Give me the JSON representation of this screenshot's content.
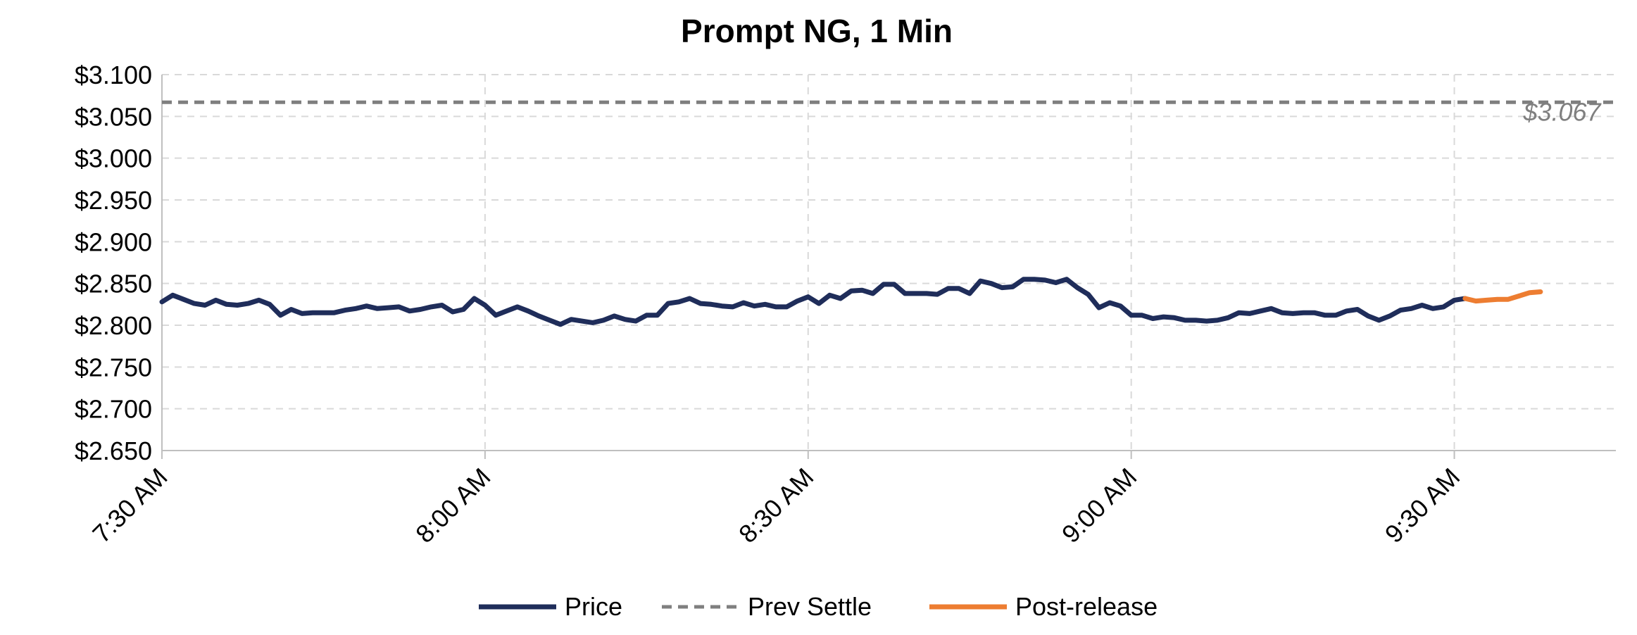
{
  "chart_data": {
    "type": "line",
    "title": "Prompt NG, 1 Min",
    "xlabel": "",
    "ylabel": "",
    "x_range_minutes": [
      0,
      135
    ],
    "ylim": [
      2.65,
      3.1
    ],
    "y_ticks": [
      "$3.100",
      "$3.050",
      "$3.000",
      "$2.950",
      "$2.900",
      "$2.850",
      "$2.800",
      "$2.750",
      "$2.700",
      "$2.650"
    ],
    "y_tick_values": [
      3.1,
      3.05,
      3.0,
      2.95,
      2.9,
      2.85,
      2.8,
      2.75,
      2.7,
      2.65
    ],
    "x_ticks": [
      "7:30 AM",
      "8:00 AM",
      "8:30 AM",
      "9:00 AM",
      "9:30 AM"
    ],
    "x_tick_values": [
      0,
      30,
      60,
      90,
      120
    ],
    "grid": true,
    "legend_position": "bottom",
    "series": [
      {
        "name": "Price",
        "color": "#1f2d5a",
        "style": "solid",
        "x": [
          0,
          1,
          2,
          3,
          4,
          5,
          6,
          7,
          8,
          9,
          10,
          11,
          12,
          13,
          14,
          15,
          16,
          17,
          18,
          19,
          20,
          21,
          22,
          23,
          24,
          25,
          26,
          27,
          28,
          29,
          30,
          31,
          32,
          33,
          34,
          35,
          36,
          37,
          38,
          39,
          40,
          41,
          42,
          43,
          44,
          45,
          46,
          47,
          48,
          49,
          50,
          51,
          52,
          53,
          54,
          55,
          56,
          57,
          58,
          59,
          60,
          61,
          62,
          63,
          64,
          65,
          66,
          67,
          68,
          69,
          70,
          71,
          72,
          73,
          74,
          75,
          76,
          77,
          78,
          79,
          80,
          81,
          82,
          83,
          84,
          85,
          86,
          87,
          88,
          89,
          90,
          91,
          92,
          93,
          94,
          95,
          96,
          97,
          98,
          99,
          100,
          101,
          102,
          103,
          104,
          105,
          106,
          107,
          108,
          109,
          110,
          111,
          112,
          113,
          114,
          115,
          116,
          117,
          118,
          119,
          120,
          121
        ],
        "values": [
          2.828,
          2.836,
          2.831,
          2.826,
          2.824,
          2.83,
          2.825,
          2.824,
          2.826,
          2.83,
          2.825,
          2.812,
          2.819,
          2.814,
          2.815,
          2.815,
          2.815,
          2.818,
          2.82,
          2.823,
          2.82,
          2.821,
          2.822,
          2.817,
          2.819,
          2.822,
          2.824,
          2.816,
          2.819,
          2.832,
          2.824,
          2.812,
          2.817,
          2.822,
          2.817,
          2.811,
          2.806,
          2.801,
          2.807,
          2.805,
          2.803,
          2.806,
          2.811,
          2.807,
          2.805,
          2.812,
          2.812,
          2.826,
          2.828,
          2.832,
          2.826,
          2.825,
          2.823,
          2.822,
          2.827,
          2.823,
          2.825,
          2.822,
          2.822,
          2.829,
          2.834,
          2.826,
          2.836,
          2.832,
          2.841,
          2.842,
          2.838,
          2.849,
          2.849,
          2.838,
          2.838,
          2.838,
          2.837,
          2.844,
          2.844,
          2.838,
          2.853,
          2.85,
          2.845,
          2.846,
          2.855,
          2.855,
          2.854,
          2.851,
          2.855,
          2.845,
          2.837,
          2.821,
          2.827,
          2.823,
          2.812,
          2.812,
          2.808,
          2.81,
          2.809,
          2.806,
          2.806,
          2.805,
          2.806,
          2.809,
          2.815,
          2.814,
          2.817,
          2.82,
          2.815,
          2.814,
          2.815,
          2.815,
          2.812,
          2.812,
          2.817,
          2.819,
          2.811,
          2.806,
          2.811,
          2.818,
          2.82,
          2.824,
          2.82,
          2.822,
          2.83,
          2.832
        ]
      },
      {
        "name": "Prev Settle",
        "color": "#7f7f7f",
        "style": "dashed",
        "x": [
          0,
          135
        ],
        "values": [
          3.067,
          3.067
        ]
      },
      {
        "name": "Post-release",
        "color": "#ed7d31",
        "style": "solid",
        "x": [
          121,
          122,
          123,
          124,
          125,
          126,
          127,
          128
        ],
        "values": [
          2.832,
          2.829,
          2.83,
          2.831,
          2.831,
          2.835,
          2.839,
          2.84
        ]
      }
    ],
    "annotations": [
      {
        "text": "$3.067",
        "x": 130,
        "y": 3.045
      }
    ]
  }
}
